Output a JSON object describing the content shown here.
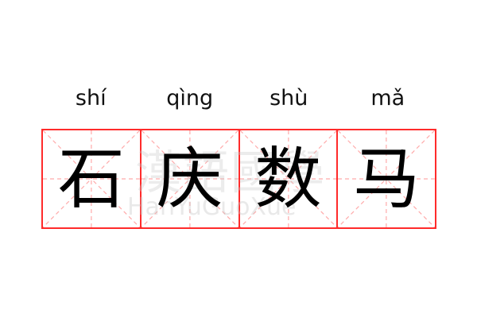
{
  "pinyin": [
    "shí",
    "qìng",
    "shù",
    "mǎ"
  ],
  "characters": [
    "石",
    "庆",
    "数",
    "马"
  ],
  "watermark": {
    "chinese": "漢語國學",
    "latin": "HanYuGuoXue"
  },
  "colors": {
    "grid_border": "#ff2b2b",
    "guide_lines": "#ffaaaa",
    "text": "#000000"
  }
}
